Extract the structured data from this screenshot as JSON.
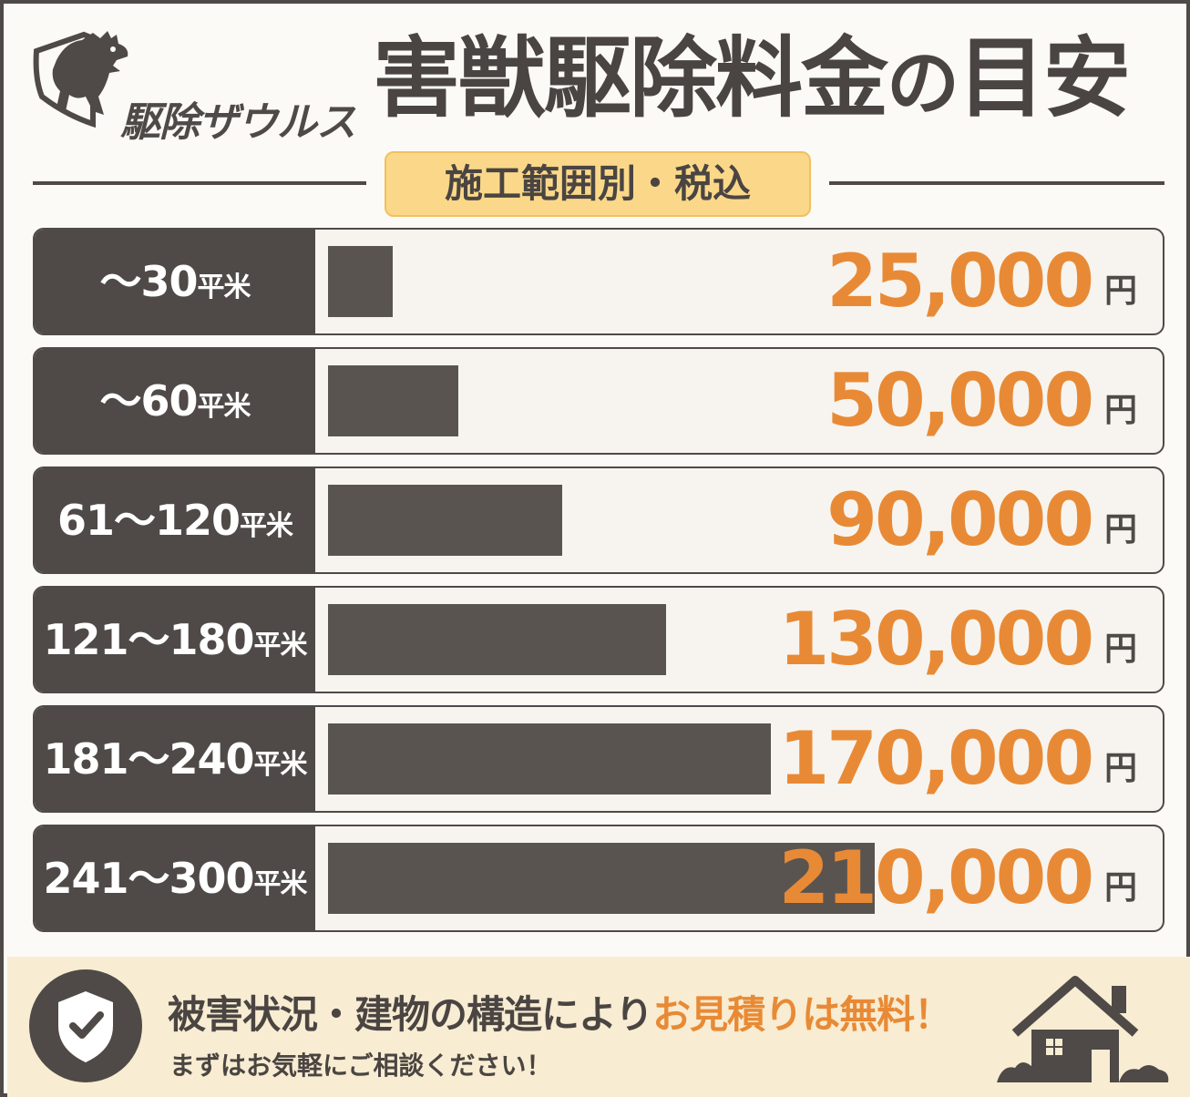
{
  "brand": {
    "name": "駆除ザウルス"
  },
  "header": {
    "title_main": "害獣駆除料金",
    "title_particle": "の",
    "title_end": "目安",
    "badge": "施工範囲別・税込"
  },
  "chart_data": {
    "type": "bar",
    "orientation": "horizontal",
    "categories": [
      "〜30平米",
      "〜60平米",
      "61〜120平米",
      "121〜180平米",
      "181〜240平米",
      "241〜300平米"
    ],
    "category_parts": [
      {
        "range": "〜30",
        "unit": "平米"
      },
      {
        "range": "〜60",
        "unit": "平米"
      },
      {
        "range": "61〜120",
        "unit": "平米"
      },
      {
        "range": "121〜180",
        "unit": "平米"
      },
      {
        "range": "181〜240",
        "unit": "平米"
      },
      {
        "range": "241〜300",
        "unit": "平米"
      }
    ],
    "values": [
      25000,
      50000,
      90000,
      130000,
      170000,
      210000
    ],
    "value_labels": [
      "25,000",
      "50,000",
      "90,000",
      "130,000",
      "170,000",
      "210,000"
    ],
    "value_unit": "円",
    "title": "害獣駆除料金の目安",
    "subtitle": "施工範囲別・税込",
    "grid": false,
    "legend": "none"
  },
  "footer": {
    "line1_prefix": "被害状況・建物の構造により",
    "line1_accent": "お見積りは無料！",
    "line2": "まずはお気軽にご相談ください！"
  },
  "colors": {
    "accent": "#e88a35",
    "dark": "#4f4a47",
    "badge": "#fbd889",
    "footer_bg": "#f8ecd2"
  },
  "icons": [
    "dinosaur-mascot-icon",
    "shield-check-icon",
    "house-icon"
  ]
}
